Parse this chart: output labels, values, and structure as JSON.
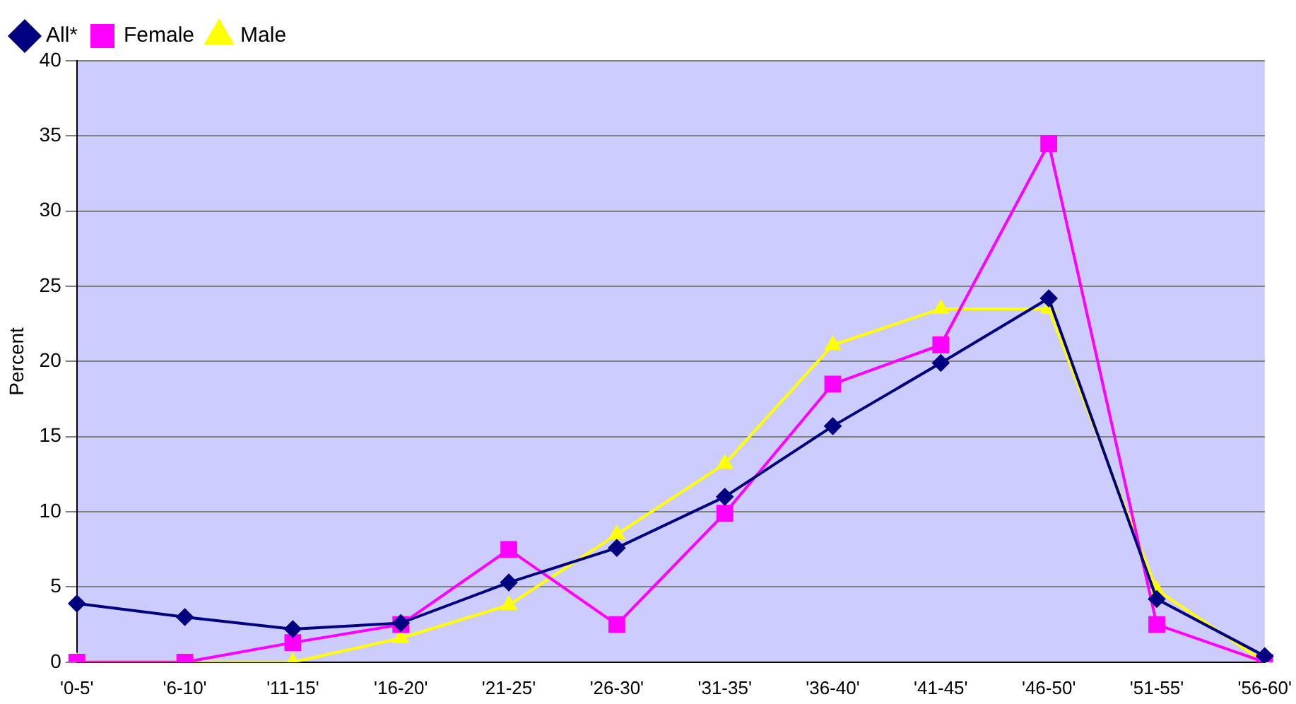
{
  "chart_data": {
    "type": "line",
    "ylabel": "Percent",
    "categories": [
      "'0-5'",
      "'6-10'",
      "'11-15'",
      "'16-20'",
      "'21-25'",
      "'26-30'",
      "'31-35'",
      "'36-40'",
      "'41-45'",
      "'46-50'",
      "'51-55'",
      "'56-60'"
    ],
    "series": [
      {
        "name": "All*",
        "color": "#000080",
        "marker": "diamond",
        "values": [
          3.9,
          3.0,
          2.2,
          2.6,
          5.3,
          7.6,
          11.0,
          15.7,
          19.9,
          24.2,
          4.2,
          0.4
        ]
      },
      {
        "name": "Female",
        "color": "#ff00ff",
        "marker": "square",
        "values": [
          0,
          0,
          1.3,
          2.5,
          7.5,
          2.5,
          9.9,
          18.5,
          21.1,
          34.5,
          2.5,
          0
        ]
      },
      {
        "name": "Male",
        "color": "#ffff00",
        "marker": "triangle",
        "values": [
          0,
          0,
          0,
          1.6,
          3.8,
          8.5,
          13.2,
          21.1,
          23.5,
          23.5,
          4.8,
          0
        ]
      }
    ],
    "ylim": [
      0,
      40
    ],
    "yticks": [
      0,
      5,
      10,
      15,
      20,
      25,
      30,
      35,
      40
    ],
    "grid": "y",
    "legend": "top left"
  }
}
